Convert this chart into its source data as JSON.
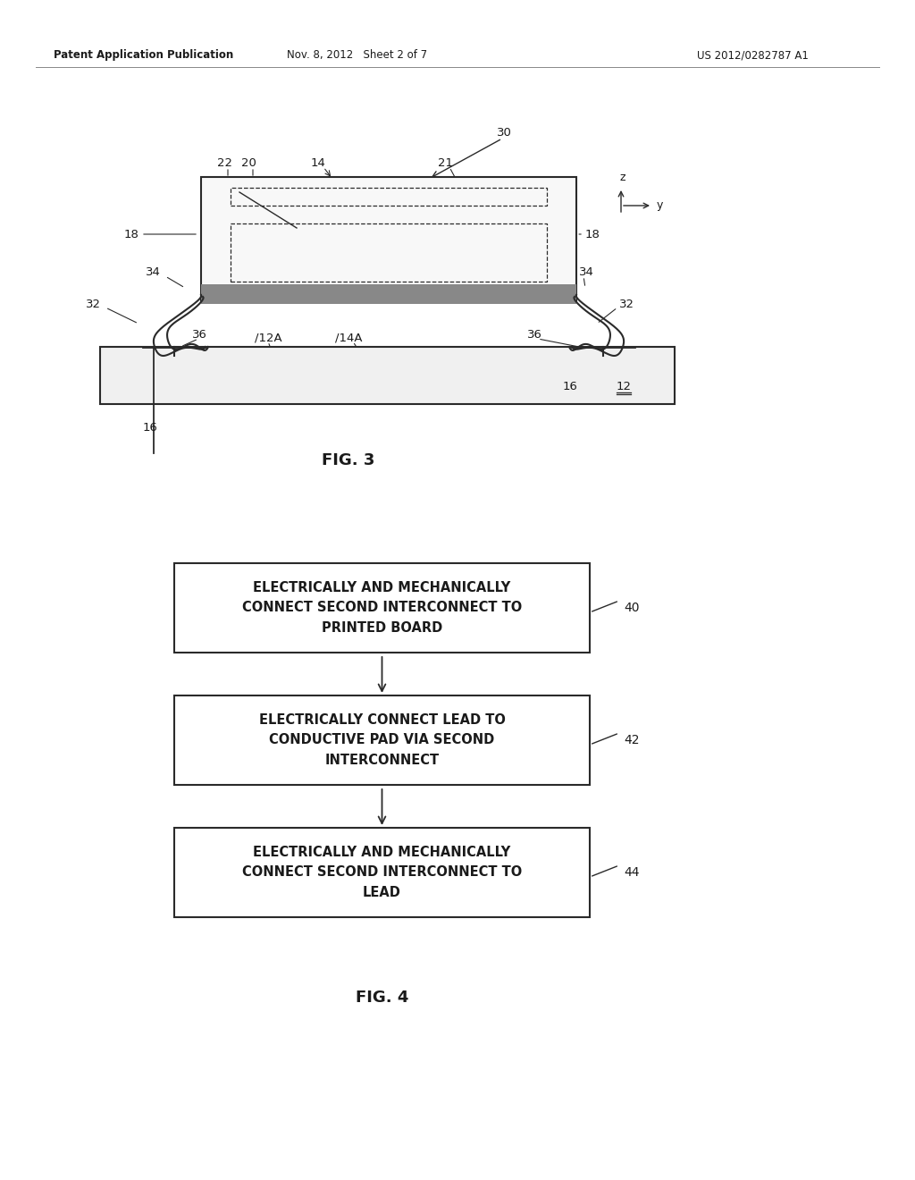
{
  "header_left": "Patent Application Publication",
  "header_mid": "Nov. 8, 2012   Sheet 2 of 7",
  "header_right": "US 2012/0282787 A1",
  "fig3_label": "FIG. 3",
  "fig4_label": "FIG. 4",
  "box1_text": "ELECTRICALLY AND MECHANICALLY\nCONNECT SECOND INTERCONNECT TO\nPRINTED BOARD",
  "box1_ref": "40",
  "box2_text": "ELECTRICALLY CONNECT LEAD TO\nCONDUCTIVE PAD VIA SECOND\nINTERCONNECT",
  "box2_ref": "42",
  "box3_text": "ELECTRICALLY AND MECHANICALLY\nCONNECT SECOND INTERCONNECT TO\nLEAD",
  "box3_ref": "44",
  "bg_color": "#ffffff",
  "line_color": "#2a2a2a",
  "text_color": "#1a1a1a"
}
